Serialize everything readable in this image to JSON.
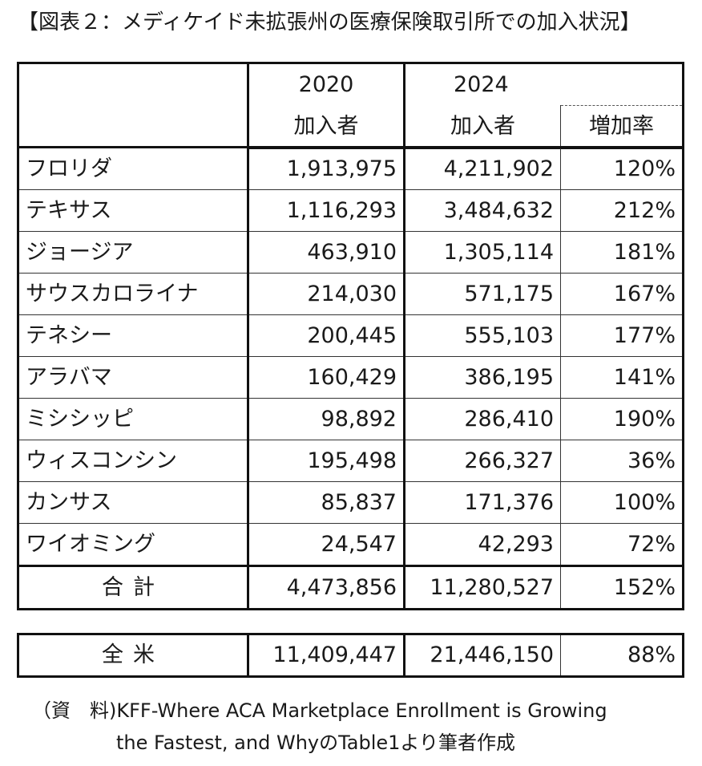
{
  "title": "【図表２：メディケイド未拡張州の医療保険取引所での加入状況】",
  "header": {
    "year_2020": "2020",
    "year_2024": "2024",
    "enroll_2020": "加入者",
    "enroll_2024": "加入者",
    "increase_rate": "増加率"
  },
  "rows": [
    {
      "state": "フロリダ",
      "v2020": "1,913,975",
      "v2024": "4,211,902",
      "rate": "120%"
    },
    {
      "state": "テキサス",
      "v2020": "1,116,293",
      "v2024": "3,484,632",
      "rate": "212%"
    },
    {
      "state": "ジョージア",
      "v2020": "463,910",
      "v2024": "1,305,114",
      "rate": "181%"
    },
    {
      "state": "サウスカロライナ",
      "v2020": "214,030",
      "v2024": "571,175",
      "rate": "167%"
    },
    {
      "state": "テネシー",
      "v2020": "200,445",
      "v2024": "555,103",
      "rate": "177%"
    },
    {
      "state": "アラバマ",
      "v2020": "160,429",
      "v2024": "386,195",
      "rate": "141%"
    },
    {
      "state": "ミシシッピ",
      "v2020": "98,892",
      "v2024": "286,410",
      "rate": "190%"
    },
    {
      "state": "ウィスコンシン",
      "v2020": "195,498",
      "v2024": "266,327",
      "rate": "36%"
    },
    {
      "state": "カンサス",
      "v2020": "85,837",
      "v2024": "171,376",
      "rate": "100%"
    },
    {
      "state": "ワイオミング",
      "v2020": "24,547",
      "v2024": "42,293",
      "rate": "72%"
    }
  ],
  "total": {
    "label": "合計",
    "v2020": "4,473,856",
    "v2024": "11,280,527",
    "rate": "152%"
  },
  "nation": {
    "label": "全米",
    "v2020": "11,409,447",
    "v2024": "21,446,150",
    "rate": "88%"
  },
  "source": {
    "line1": "（資　料)KFF-Where ACA Marketplace Enrollment is Growing",
    "line2": "the Fastest, and WhyのTable1より筆者作成"
  }
}
